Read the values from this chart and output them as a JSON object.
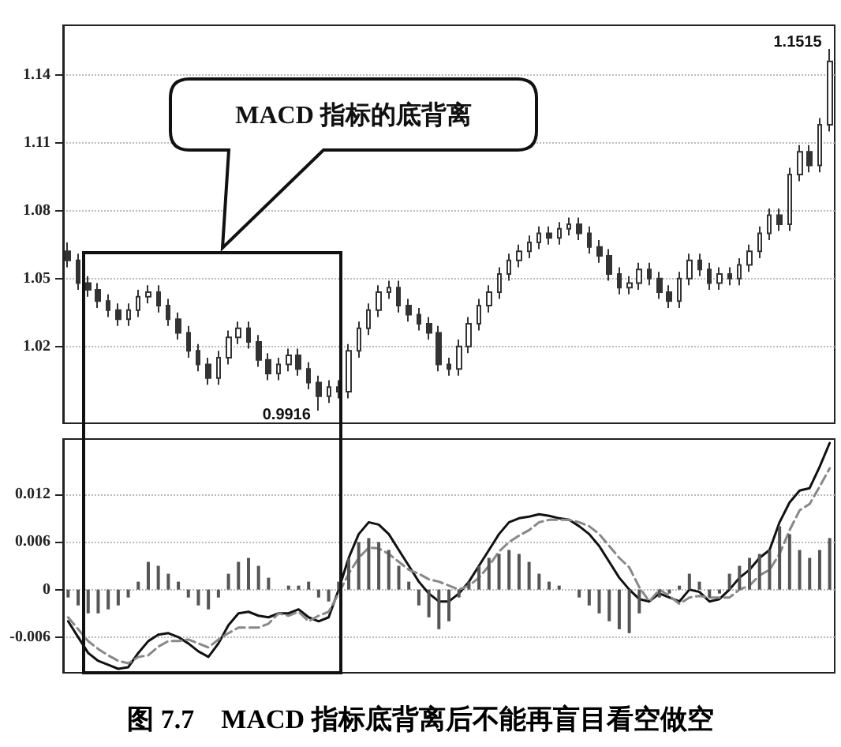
{
  "chart_data": [
    {
      "type": "candlestick",
      "color": "#333333",
      "grid": "y",
      "tick_labels": "y",
      "categories": [
        null,
        null,
        null,
        null,
        null,
        null,
        null,
        null,
        null,
        null,
        null,
        null,
        null,
        null,
        null,
        null,
        null,
        null,
        null,
        null,
        null,
        null,
        null,
        null,
        null,
        null,
        null,
        null,
        null,
        null,
        null,
        null,
        null,
        null,
        null,
        null,
        null,
        null,
        null,
        null,
        null,
        null,
        null,
        null,
        null,
        null,
        null,
        null,
        null,
        null,
        null,
        null,
        null,
        null,
        null,
        null,
        null,
        null,
        null,
        null,
        null,
        null,
        null,
        null,
        null,
        null,
        null,
        null,
        null,
        null,
        null,
        null,
        null,
        null,
        null,
        null,
        null
      ],
      "ylim": [
        0.986,
        1.162
      ],
      "yticks": [
        1.02,
        1.05,
        1.08,
        1.11,
        1.14
      ],
      "annotations": [
        "MACD 指标的底背离",
        "0.9916",
        "1.1515"
      ],
      "ohlc": [
        [
          1.062,
          1.066,
          1.055,
          1.058
        ],
        [
          1.058,
          1.061,
          1.045,
          1.048
        ],
        [
          1.048,
          1.051,
          1.042,
          1.045
        ],
        [
          1.045,
          1.048,
          1.037,
          1.04
        ],
        [
          1.04,
          1.043,
          1.033,
          1.036
        ],
        [
          1.036,
          1.039,
          1.029,
          1.032
        ],
        [
          1.032,
          1.039,
          1.029,
          1.036
        ],
        [
          1.036,
          1.045,
          1.033,
          1.042
        ],
        [
          1.042,
          1.047,
          1.039,
          1.044
        ],
        [
          1.044,
          1.047,
          1.035,
          1.038
        ],
        [
          1.038,
          1.041,
          1.029,
          1.032
        ],
        [
          1.032,
          1.035,
          1.023,
          1.026
        ],
        [
          1.026,
          1.029,
          1.015,
          1.018
        ],
        [
          1.018,
          1.021,
          1.009,
          1.012
        ],
        [
          1.012,
          1.015,
          1.003,
          1.006
        ],
        [
          1.006,
          1.018,
          1.003,
          1.015
        ],
        [
          1.015,
          1.027,
          1.012,
          1.024
        ],
        [
          1.024,
          1.031,
          1.021,
          1.028
        ],
        [
          1.028,
          1.031,
          1.019,
          1.022
        ],
        [
          1.022,
          1.025,
          1.011,
          1.014
        ],
        [
          1.014,
          1.017,
          1.005,
          1.008
        ],
        [
          1.008,
          1.015,
          1.005,
          1.012
        ],
        [
          1.012,
          1.019,
          1.009,
          1.016
        ],
        [
          1.016,
          1.019,
          1.007,
          1.01
        ],
        [
          1.01,
          1.013,
          1.001,
          1.004
        ],
        [
          1.004,
          1.007,
          0.9916,
          0.998
        ],
        [
          0.998,
          1.005,
          0.995,
          1.002
        ],
        [
          1.002,
          1.005,
          0.997,
          1.0
        ],
        [
          1.0,
          1.021,
          0.997,
          1.018
        ],
        [
          1.018,
          1.031,
          1.015,
          1.028
        ],
        [
          1.028,
          1.039,
          1.025,
          1.036
        ],
        [
          1.036,
          1.047,
          1.033,
          1.044
        ],
        [
          1.044,
          1.049,
          1.041,
          1.046
        ],
        [
          1.046,
          1.049,
          1.035,
          1.038
        ],
        [
          1.038,
          1.041,
          1.031,
          1.034
        ],
        [
          1.034,
          1.037,
          1.027,
          1.03
        ],
        [
          1.03,
          1.033,
          1.023,
          1.026
        ],
        [
          1.026,
          1.029,
          1.009,
          1.012
        ],
        [
          1.012,
          1.015,
          1.007,
          1.01
        ],
        [
          1.01,
          1.023,
          1.007,
          1.02
        ],
        [
          1.02,
          1.033,
          1.017,
          1.03
        ],
        [
          1.03,
          1.041,
          1.027,
          1.038
        ],
        [
          1.038,
          1.047,
          1.035,
          1.044
        ],
        [
          1.044,
          1.055,
          1.041,
          1.052
        ],
        [
          1.052,
          1.061,
          1.049,
          1.058
        ],
        [
          1.058,
          1.065,
          1.055,
          1.062
        ],
        [
          1.062,
          1.069,
          1.059,
          1.066
        ],
        [
          1.066,
          1.073,
          1.063,
          1.07
        ],
        [
          1.07,
          1.073,
          1.065,
          1.068
        ],
        [
          1.068,
          1.075,
          1.065,
          1.072
        ],
        [
          1.072,
          1.077,
          1.069,
          1.074
        ],
        [
          1.074,
          1.077,
          1.067,
          1.07
        ],
        [
          1.07,
          1.073,
          1.061,
          1.064
        ],
        [
          1.064,
          1.067,
          1.057,
          1.06
        ],
        [
          1.06,
          1.063,
          1.049,
          1.052
        ],
        [
          1.052,
          1.055,
          1.043,
          1.046
        ],
        [
          1.046,
          1.051,
          1.043,
          1.048
        ],
        [
          1.048,
          1.057,
          1.045,
          1.054
        ],
        [
          1.054,
          1.057,
          1.047,
          1.05
        ],
        [
          1.05,
          1.053,
          1.041,
          1.044
        ],
        [
          1.044,
          1.047,
          1.037,
          1.04
        ],
        [
          1.04,
          1.053,
          1.037,
          1.05
        ],
        [
          1.05,
          1.061,
          1.047,
          1.058
        ],
        [
          1.058,
          1.061,
          1.051,
          1.054
        ],
        [
          1.054,
          1.057,
          1.045,
          1.048
        ],
        [
          1.048,
          1.055,
          1.045,
          1.052
        ],
        [
          1.052,
          1.055,
          1.047,
          1.05
        ],
        [
          1.05,
          1.059,
          1.047,
          1.056
        ],
        [
          1.056,
          1.065,
          1.053,
          1.062
        ],
        [
          1.062,
          1.073,
          1.059,
          1.07
        ],
        [
          1.07,
          1.081,
          1.067,
          1.078
        ],
        [
          1.078,
          1.081,
          1.071,
          1.074
        ],
        [
          1.074,
          1.099,
          1.071,
          1.096
        ],
        [
          1.096,
          1.109,
          1.093,
          1.106
        ],
        [
          1.106,
          1.109,
          1.097,
          1.1
        ],
        [
          1.1,
          1.121,
          1.097,
          1.118
        ],
        [
          1.118,
          1.1515,
          1.115,
          1.146
        ]
      ]
    },
    {
      "type": "bar",
      "grid": "y",
      "tick_labels": "y",
      "marker": "none",
      "categories": [
        null,
        null,
        null,
        null,
        null,
        null,
        null,
        null,
        null,
        null,
        null,
        null,
        null,
        null,
        null,
        null,
        null,
        null,
        null,
        null,
        null,
        null,
        null,
        null,
        null,
        null,
        null,
        null,
        null,
        null,
        null,
        null,
        null,
        null,
        null,
        null,
        null,
        null,
        null,
        null,
        null,
        null,
        null,
        null,
        null,
        null,
        null,
        null,
        null,
        null,
        null,
        null,
        null,
        null,
        null,
        null,
        null,
        null,
        null,
        null,
        null,
        null,
        null,
        null,
        null,
        null,
        null,
        null,
        null,
        null,
        null,
        null,
        null,
        null,
        null,
        null,
        null
      ],
      "ylim": [
        -0.0105,
        0.019
      ],
      "yticks": [
        -0.006,
        0,
        0.006,
        0.012
      ],
      "annotations": [
        "图 7.7　MACD 指标底背离后不能再盲目看空做空"
      ],
      "series": [
        {
          "type": "bar",
          "color": "#555555",
          "values": [
            -0.001,
            -0.002,
            -0.003,
            -0.003,
            -0.0025,
            -0.002,
            -0.001,
            0.001,
            0.0035,
            0.003,
            0.002,
            0.001,
            -0.001,
            -0.002,
            -0.0025,
            -0.001,
            0.002,
            0.0035,
            0.004,
            0.003,
            0.0015,
            0.0,
            0.0005,
            0.0005,
            0.001,
            -0.001,
            -0.0015,
            0.001,
            0.004,
            0.006,
            0.0065,
            0.006,
            0.005,
            0.003,
            0.001,
            -0.002,
            -0.0035,
            -0.005,
            -0.004,
            -0.001,
            0.001,
            0.003,
            0.004,
            0.0045,
            0.005,
            0.0045,
            0.0035,
            0.002,
            0.001,
            0.0005,
            0.0,
            -0.001,
            -0.002,
            -0.003,
            -0.004,
            -0.005,
            -0.0055,
            -0.003,
            0.0,
            -0.001,
            -0.0005,
            0.0005,
            0.002,
            0.001,
            -0.001,
            -0.0005,
            0.002,
            0.003,
            0.004,
            0.0045,
            0.005,
            0.008,
            0.007,
            0.005,
            0.004,
            0.005,
            0.0065
          ]
        },
        {
          "type": "line",
          "color": "#111111",
          "line_style": "solid",
          "values": [
            -0.004,
            -0.006,
            -0.008,
            -0.009,
            -0.0095,
            -0.01,
            -0.0098,
            -0.008,
            -0.0065,
            -0.0057,
            -0.0055,
            -0.006,
            -0.0068,
            -0.0078,
            -0.0085,
            -0.0068,
            -0.0045,
            -0.003,
            -0.0028,
            -0.0033,
            -0.0035,
            -0.003,
            -0.003,
            -0.0025,
            -0.0035,
            -0.004,
            -0.0035,
            0.0,
            0.004,
            0.007,
            0.0085,
            0.0082,
            0.007,
            0.005,
            0.003,
            0.001,
            -0.0005,
            -0.0015,
            -0.0015,
            -0.0005,
            0.001,
            0.003,
            0.005,
            0.007,
            0.0085,
            0.009,
            0.0092,
            0.0095,
            0.0093,
            0.009,
            0.0088,
            0.008,
            0.007,
            0.0055,
            0.0035,
            0.0015,
            0.0,
            -0.0012,
            -0.0015,
            -0.0005,
            -0.001,
            -0.0015,
            0.0,
            -0.0003,
            -0.0015,
            -0.0012,
            0.0,
            0.0015,
            0.0025,
            0.004,
            0.005,
            0.0085,
            0.011,
            0.0125,
            0.0128,
            0.0155,
            0.0185
          ]
        },
        {
          "type": "line",
          "color": "#888888",
          "line_style": "dashed",
          "values": [
            -0.0035,
            -0.005,
            -0.0065,
            -0.0075,
            -0.0083,
            -0.009,
            -0.0093,
            -0.0085,
            -0.0083,
            -0.0072,
            -0.0065,
            -0.0065,
            -0.0063,
            -0.0068,
            -0.0073,
            -0.0063,
            -0.0055,
            -0.0048,
            -0.0048,
            -0.0048,
            -0.0043,
            -0.003,
            -0.0033,
            -0.0028,
            -0.004,
            -0.0033,
            -0.0028,
            -0.0005,
            0.002,
            0.004,
            0.0053,
            0.0052,
            0.0045,
            0.0035,
            0.0025,
            0.002,
            0.0013,
            0.001,
            0.0005,
            0.0,
            0.0005,
            0.0015,
            0.003,
            0.0048,
            0.006,
            0.0068,
            0.0075,
            0.0085,
            0.0088,
            0.0088,
            0.0088,
            0.0085,
            0.008,
            0.007,
            0.0055,
            0.004,
            0.0028,
            0.0003,
            -0.0015,
            0.0,
            -0.0008,
            -0.0018,
            -0.001,
            -0.0008,
            -0.001,
            -0.001,
            -0.001,
            0.0,
            0.0005,
            0.0018,
            0.0025,
            0.0045,
            0.0075,
            0.01,
            0.0108,
            0.013,
            0.0153
          ]
        }
      ]
    }
  ]
}
